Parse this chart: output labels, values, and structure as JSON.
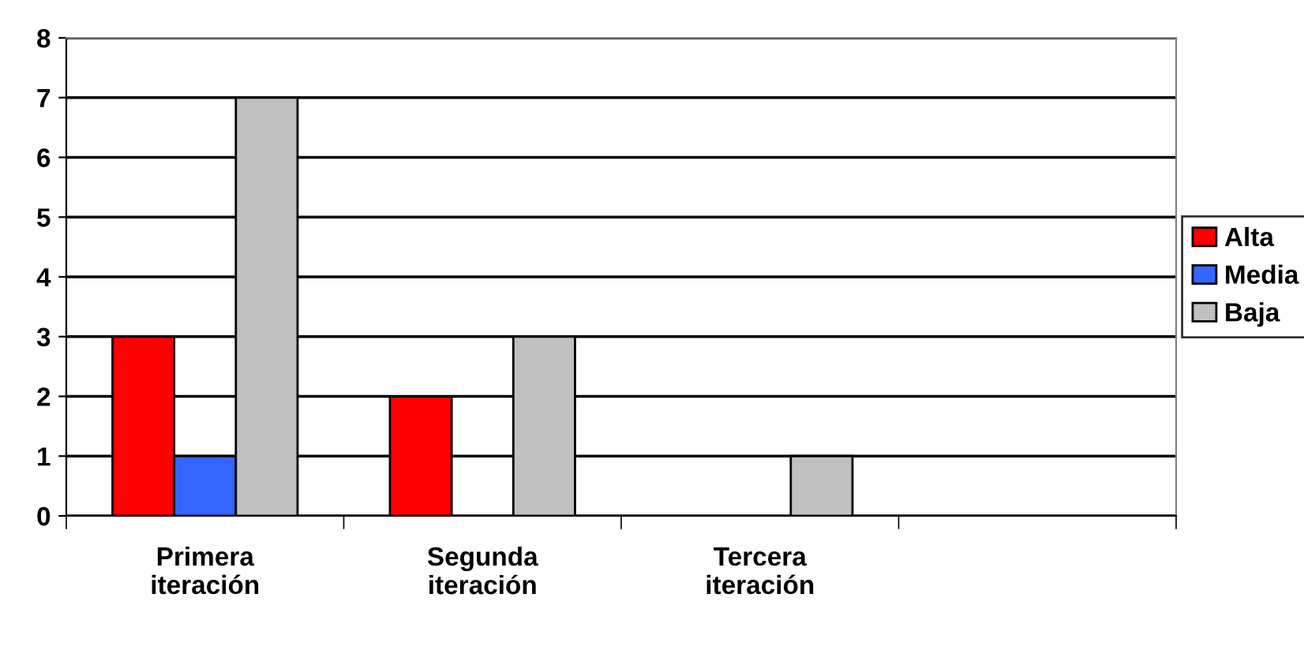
{
  "chart_data": {
    "type": "bar",
    "categories": [
      "Primera iteración",
      "Segunda iteración",
      "Tercera iteración",
      null
    ],
    "series": [
      {
        "name": "Alta",
        "color": "#ff0000",
        "values": [
          3,
          2,
          0,
          0
        ]
      },
      {
        "name": "Media",
        "color": "#3366ff",
        "values": [
          1,
          0,
          0,
          0
        ]
      },
      {
        "name": "Baja",
        "color": "#c0c0c0",
        "values": [
          7,
          3,
          1,
          0
        ]
      }
    ],
    "ylim": [
      0,
      8
    ],
    "yticks": [
      0,
      1,
      2,
      3,
      4,
      5,
      6,
      7,
      8
    ],
    "grid": "y",
    "legend": "right"
  }
}
